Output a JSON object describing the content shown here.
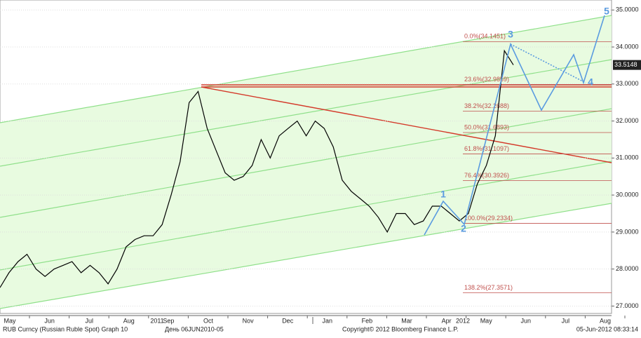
{
  "chart_data": {
    "type": "line",
    "months": [
      "May",
      "Jun",
      "Jul",
      "Aug",
      "Sep",
      "Oct",
      "Nov",
      "Dec",
      "Jan",
      "Feb",
      "Mar",
      "Apr",
      "May",
      "Jun",
      "Jul",
      "Aug"
    ],
    "years": [
      "2011",
      "2012"
    ],
    "series": [
      {
        "color": "#000000",
        "values": [
          27.5,
          27.9,
          28.2,
          28.4,
          28.0,
          27.8,
          28.0,
          28.1,
          28.2,
          27.9,
          28.1,
          27.9,
          27.6,
          28.0,
          28.6,
          28.8,
          28.9,
          28.9,
          29.2,
          30.0,
          30.9,
          32.5,
          32.8,
          31.8,
          31.2,
          30.6,
          30.4,
          30.5,
          30.8,
          31.5,
          31.0,
          31.6,
          31.8,
          32.0,
          31.6,
          32.0,
          31.8,
          31.3,
          30.4,
          30.1,
          29.9,
          29.7,
          29.4,
          29.0,
          29.5,
          29.5,
          29.2,
          29.3,
          29.7,
          29.7,
          29.5,
          29.3,
          29.5,
          30.3,
          30.8,
          31.6,
          33.9,
          33.5148
        ]
      }
    ],
    "last_price": 33.5148,
    "ylim": [
      26.8,
      35.27
    ],
    "yticks": [
      {
        "value": 27,
        "label": "27.0000"
      },
      {
        "value": 28,
        "label": "28.0000"
      },
      {
        "value": 29,
        "label": "29.0000"
      },
      {
        "value": 30,
        "label": "30.0000"
      },
      {
        "value": 31,
        "label": "31.0000"
      },
      {
        "value": 32,
        "label": "32.0000"
      },
      {
        "value": 33,
        "label": "33.0000"
      },
      {
        "value": 34,
        "label": "34.0000"
      },
      {
        "value": 35,
        "label": "35.0000"
      }
    ],
    "fib_levels": [
      {
        "value": 34.1451,
        "label": "0.0%(34.1451)"
      },
      {
        "value": 32.9859,
        "label": "23.6%(32.9859)"
      },
      {
        "value": 32.2688,
        "label": "38.2%(32.2688)"
      },
      {
        "value": 31.6893,
        "label": "50.0%(31.6893)"
      },
      {
        "value": 31.1097,
        "label": "61.8%(31.1097)"
      },
      {
        "value": 30.3926,
        "label": "76.4%(30.3926)"
      },
      {
        "value": 29.2334,
        "label": "100.0%(29.2334)"
      },
      {
        "value": 27.3571,
        "label": "138.2%(27.3571)"
      }
    ],
    "wave_labels": [
      "1",
      "2",
      "3",
      "4",
      "5"
    ],
    "footer": {
      "left": "RUB Curncy (Russian Ruble Spot) Graph 10",
      "period": "День 06JUN2010-05",
      "copyright": "Copyright© 2012 Bloomberg Finance L.P.",
      "timestamp": "05-Jun-2012 08:33:14"
    }
  }
}
